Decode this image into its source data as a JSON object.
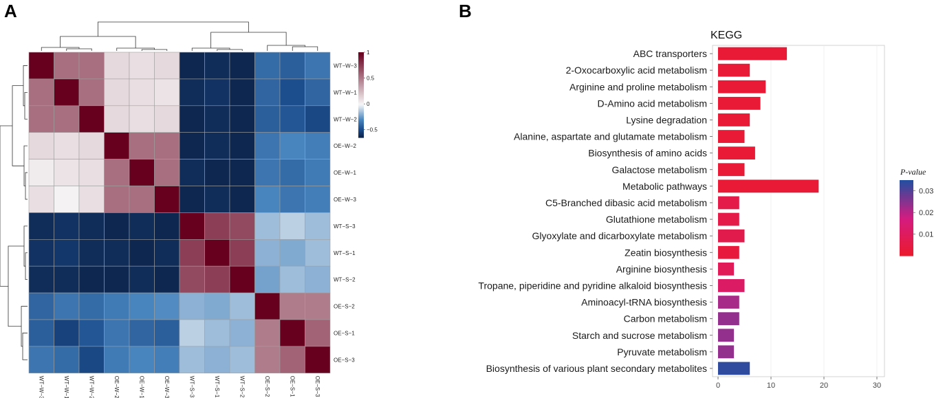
{
  "panel_labels": {
    "a": "A",
    "b": "B"
  },
  "colors": {
    "heat_low": "#0b1f44",
    "heat_mid": "#f7f7f7",
    "heat_high": "#67001f",
    "p_low": "#ec1a2b",
    "p_mid": "#d41c80",
    "p_high": "#244ea0",
    "grid": "#ececec",
    "panel_border": "#c8c8c8",
    "cell_border": "#a0a0a0"
  },
  "chart_data": [
    {
      "type": "heatmap",
      "title": "",
      "row_labels": [
        "WT−W−3",
        "WT−W−1",
        "WT−W−2",
        "OE−W−2",
        "OE−W−1",
        "OE−W−3",
        "WT−S−3",
        "WT−S−1",
        "WT−S−2",
        "OE−S−2",
        "OE−S−1",
        "OE−S−3"
      ],
      "col_labels": [
        "WT−W−3",
        "WT−W−1",
        "WT−W−2",
        "OE−W−2",
        "OE−W−1",
        "OE−W−3",
        "WT−S−3",
        "WT−S−1",
        "WT−S−2",
        "OE−S−2",
        "OE−S−1",
        "OE−S−3"
      ],
      "values": [
        [
          1.0,
          0.55,
          0.55,
          0.12,
          0.1,
          0.12,
          -0.62,
          -0.6,
          -0.62,
          -0.38,
          -0.42,
          -0.35
        ],
        [
          0.55,
          1.0,
          0.55,
          0.12,
          0.1,
          0.08,
          -0.6,
          -0.58,
          -0.62,
          -0.4,
          -0.48,
          -0.4
        ],
        [
          0.55,
          0.55,
          1.0,
          0.12,
          0.1,
          0.12,
          -0.62,
          -0.6,
          -0.62,
          -0.42,
          -0.45,
          -0.5
        ],
        [
          0.12,
          0.1,
          0.12,
          1.0,
          0.55,
          0.55,
          -0.62,
          -0.6,
          -0.62,
          -0.35,
          -0.3,
          -0.32
        ],
        [
          0.05,
          0.08,
          0.1,
          0.55,
          1.0,
          0.55,
          -0.6,
          -0.62,
          -0.62,
          -0.35,
          -0.38,
          -0.33
        ],
        [
          0.1,
          0.02,
          0.1,
          0.55,
          0.55,
          1.0,
          -0.62,
          -0.6,
          -0.62,
          -0.3,
          -0.35,
          -0.32
        ],
        [
          -0.6,
          -0.58,
          -0.6,
          -0.62,
          -0.6,
          -0.62,
          1.0,
          0.75,
          0.7,
          -0.15,
          -0.1,
          -0.15
        ],
        [
          -0.58,
          -0.56,
          -0.6,
          -0.6,
          -0.62,
          -0.6,
          0.75,
          1.0,
          0.75,
          -0.18,
          -0.2,
          -0.15
        ],
        [
          -0.6,
          -0.6,
          -0.62,
          -0.62,
          -0.6,
          -0.62,
          0.7,
          0.75,
          1.0,
          -0.22,
          -0.15,
          -0.18
        ],
        [
          -0.4,
          -0.35,
          -0.38,
          -0.33,
          -0.3,
          -0.28,
          -0.18,
          -0.2,
          -0.15,
          1.0,
          0.5,
          0.5
        ],
        [
          -0.42,
          -0.52,
          -0.45,
          -0.35,
          -0.4,
          -0.42,
          -0.1,
          -0.15,
          -0.18,
          0.5,
          1.0,
          0.6
        ],
        [
          -0.35,
          -0.38,
          -0.5,
          -0.33,
          -0.3,
          -0.32,
          -0.15,
          -0.18,
          -0.15,
          0.5,
          0.6,
          1.0
        ]
      ],
      "colorbar": {
        "ticks": [
          "1",
          "0.5",
          "0",
          "−0.5"
        ],
        "min": -0.65,
        "max": 1.0
      }
    },
    {
      "type": "bar",
      "orientation": "horizontal",
      "title": "KEGG",
      "xlabel": "",
      "ylabel": "",
      "xlim": [
        0,
        30
      ],
      "xticks": [
        "0",
        "10",
        "20",
        "30"
      ],
      "categories": [
        "ABC transporters",
        "2-Oxocarboxylic acid metabolism",
        "Arginine and proline metabolism",
        "D-Amino acid metabolism",
        "Lysine degradation",
        "Alanine, aspartate and glutamate metabolism",
        "Biosynthesis of amino acids",
        "Galactose metabolism",
        "Metabolic pathways",
        "C5-Branched dibasic acid metabolism",
        "Glutathione metabolism",
        "Glyoxylate and dicarboxylate metabolism",
        "Zeatin biosynthesis",
        "Arginine biosynthesis",
        "Tropane, piperidine and pyridine alkaloid biosynthesis",
        "Aminoacyl-tRNA biosynthesis",
        "Carbon metabolism",
        "Starch and sucrose metabolism",
        "Pyruvate metabolism",
        "Biosynthesis of various plant secondary metabolites"
      ],
      "values": [
        13,
        6,
        9,
        8,
        6,
        5,
        7,
        5,
        19,
        4,
        4,
        5,
        4,
        3,
        5,
        4,
        4,
        3,
        3,
        6
      ],
      "p_values": [
        0.002,
        0.002,
        0.002,
        0.002,
        0.002,
        0.002,
        0.002,
        0.002,
        0.002,
        0.006,
        0.006,
        0.007,
        0.004,
        0.009,
        0.012,
        0.022,
        0.024,
        0.024,
        0.024,
        0.034
      ],
      "legend": {
        "title": "P-value",
        "ticks": [
          "0.03",
          "0.02",
          "0.01"
        ],
        "min": 0.0,
        "max": 0.035,
        "placement": "right"
      }
    }
  ]
}
